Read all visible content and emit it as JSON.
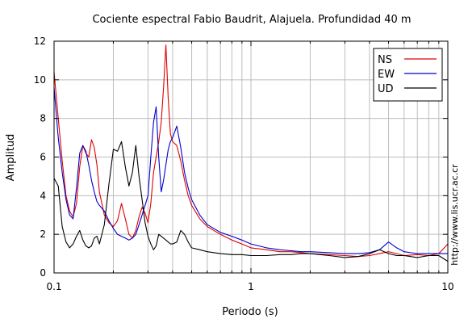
{
  "chart_data": {
    "type": "line",
    "title": "Cociente espectral Fabio Baudrit, Alajuela. Profundidad 40 m",
    "xlabel": "Periodo (s)",
    "ylabel": "Amplitud",
    "side_note": "http://www.lis.ucr.ac.cr",
    "x_scale": "log",
    "xlim": [
      0.1,
      10
    ],
    "ylim": [
      0,
      12
    ],
    "x_ticks": [
      0.1,
      1,
      10
    ],
    "x_tick_labels": [
      "0.1",
      "1",
      "10"
    ],
    "y_ticks": [
      0,
      2,
      4,
      6,
      8,
      10,
      12
    ],
    "y_tick_labels": [
      "0",
      "2",
      "4",
      "6",
      "8",
      "10",
      "12"
    ],
    "grid": true,
    "legend_position": "top-right",
    "series": [
      {
        "name": "NS",
        "color": "#e00000",
        "x": [
          0.1,
          0.105,
          0.11,
          0.115,
          0.12,
          0.125,
          0.13,
          0.135,
          0.14,
          0.145,
          0.15,
          0.155,
          0.16,
          0.165,
          0.17,
          0.18,
          0.19,
          0.2,
          0.21,
          0.22,
          0.23,
          0.24,
          0.25,
          0.26,
          0.27,
          0.28,
          0.29,
          0.3,
          0.31,
          0.32,
          0.33,
          0.34,
          0.35,
          0.36,
          0.37,
          0.38,
          0.39,
          0.4,
          0.42,
          0.44,
          0.46,
          0.48,
          0.5,
          0.55,
          0.6,
          0.7,
          0.8,
          0.9,
          1.0,
          1.2,
          1.4,
          1.6,
          1.8,
          2.0,
          2.5,
          3.0,
          3.5,
          4.0,
          4.5,
          5.0,
          5.5,
          6.0,
          7.0,
          8.0,
          9.0,
          10.0
        ],
        "y": [
          10.4,
          8.0,
          5.8,
          4.0,
          3.2,
          2.9,
          3.6,
          5.5,
          6.6,
          6.2,
          6.0,
          6.9,
          6.5,
          5.6,
          4.2,
          3.0,
          2.6,
          2.4,
          2.7,
          3.6,
          2.8,
          2.0,
          1.8,
          2.2,
          2.9,
          3.4,
          3.1,
          2.6,
          3.6,
          5.2,
          6.0,
          6.8,
          7.8,
          9.6,
          11.8,
          9.0,
          7.2,
          6.8,
          6.6,
          5.8,
          4.8,
          4.0,
          3.5,
          2.8,
          2.4,
          2.0,
          1.7,
          1.5,
          1.3,
          1.2,
          1.1,
          1.1,
          1.05,
          1.0,
          0.95,
          0.9,
          0.85,
          0.9,
          1.0,
          1.1,
          1.0,
          0.9,
          0.95,
          0.9,
          1.0,
          1.5
        ]
      },
      {
        "name": "EW",
        "color": "#0000cc",
        "x": [
          0.1,
          0.105,
          0.11,
          0.115,
          0.12,
          0.125,
          0.13,
          0.135,
          0.14,
          0.145,
          0.15,
          0.155,
          0.16,
          0.165,
          0.17,
          0.18,
          0.19,
          0.2,
          0.21,
          0.22,
          0.23,
          0.24,
          0.25,
          0.26,
          0.27,
          0.28,
          0.29,
          0.3,
          0.31,
          0.32,
          0.33,
          0.34,
          0.35,
          0.36,
          0.37,
          0.38,
          0.39,
          0.4,
          0.42,
          0.44,
          0.46,
          0.48,
          0.5,
          0.55,
          0.6,
          0.7,
          0.8,
          0.9,
          1.0,
          1.2,
          1.4,
          1.6,
          1.8,
          2.0,
          2.5,
          3.0,
          3.5,
          4.0,
          4.5,
          5.0,
          5.5,
          6.0,
          7.0,
          8.0,
          9.0,
          10.0
        ],
        "y": [
          9.6,
          7.0,
          5.2,
          3.8,
          3.0,
          2.8,
          4.4,
          6.2,
          6.6,
          6.3,
          5.6,
          4.8,
          4.2,
          3.7,
          3.5,
          3.2,
          2.7,
          2.3,
          2.0,
          1.9,
          1.8,
          1.7,
          1.8,
          2.0,
          2.5,
          3.0,
          3.5,
          4.0,
          6.0,
          7.8,
          8.6,
          6.0,
          4.2,
          4.8,
          5.6,
          6.4,
          6.8,
          7.0,
          7.6,
          6.5,
          5.2,
          4.4,
          3.8,
          3.0,
          2.5,
          2.1,
          1.9,
          1.7,
          1.5,
          1.3,
          1.2,
          1.15,
          1.1,
          1.1,
          1.05,
          1.0,
          1.0,
          1.05,
          1.2,
          1.6,
          1.3,
          1.1,
          1.0,
          1.0,
          1.0,
          1.0
        ]
      },
      {
        "name": "UD",
        "color": "#000000",
        "x": [
          0.1,
          0.105,
          0.11,
          0.115,
          0.12,
          0.125,
          0.13,
          0.135,
          0.14,
          0.145,
          0.15,
          0.155,
          0.16,
          0.165,
          0.17,
          0.18,
          0.19,
          0.2,
          0.21,
          0.22,
          0.23,
          0.24,
          0.25,
          0.26,
          0.27,
          0.28,
          0.29,
          0.3,
          0.31,
          0.32,
          0.33,
          0.34,
          0.35,
          0.36,
          0.37,
          0.38,
          0.39,
          0.4,
          0.42,
          0.44,
          0.46,
          0.48,
          0.5,
          0.55,
          0.6,
          0.7,
          0.8,
          0.9,
          1.0,
          1.2,
          1.4,
          1.6,
          1.8,
          2.0,
          2.5,
          3.0,
          3.5,
          4.0,
          4.5,
          5.0,
          5.5,
          6.0,
          7.0,
          8.0,
          9.0,
          10.0
        ],
        "y": [
          4.9,
          4.5,
          2.4,
          1.6,
          1.3,
          1.5,
          1.9,
          2.2,
          1.7,
          1.4,
          1.3,
          1.4,
          1.8,
          1.9,
          1.5,
          2.5,
          4.6,
          6.4,
          6.3,
          6.8,
          5.5,
          4.5,
          5.2,
          6.6,
          5.0,
          3.8,
          2.6,
          1.9,
          1.5,
          1.2,
          1.4,
          2.0,
          1.9,
          1.8,
          1.7,
          1.6,
          1.5,
          1.5,
          1.6,
          2.2,
          2.0,
          1.6,
          1.3,
          1.2,
          1.1,
          1.0,
          0.95,
          0.95,
          0.9,
          0.9,
          0.95,
          0.95,
          1.0,
          1.0,
          0.9,
          0.8,
          0.85,
          1.0,
          1.2,
          1.0,
          0.9,
          0.9,
          0.8,
          0.9,
          0.9,
          0.6
        ]
      }
    ]
  }
}
